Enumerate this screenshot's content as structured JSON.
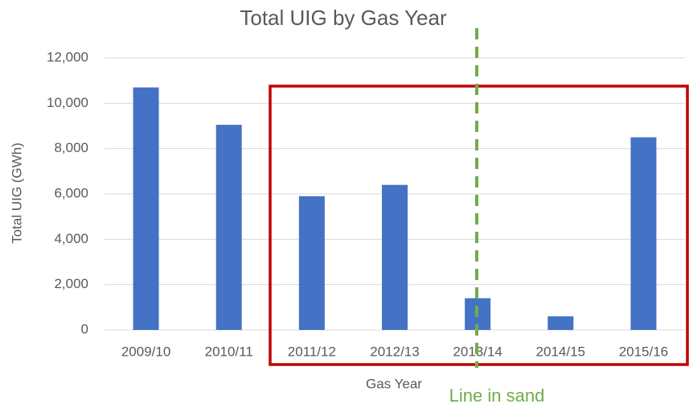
{
  "chart_data": {
    "type": "bar",
    "title": "Total UIG by Gas Year",
    "x_label": "Gas Year",
    "y_label": "Total UIG (GWh)",
    "annotation": "Line in sand",
    "categories": [
      "2009/10",
      "2010/11",
      "2011/12",
      "2012/13",
      "2013/14",
      "2014/15",
      "2015/16"
    ],
    "values": [
      10700,
      9050,
      5900,
      6400,
      1400,
      600,
      8500
    ],
    "color": "#4472c4",
    "ylim": [
      0,
      12000
    ],
    "yticks": [
      0,
      {
        "value": 2000,
        "label": "2,000"
      },
      {
        "value": 4000,
        "label": "4,000"
      },
      {
        "value": 6000,
        "label": "6,000"
      },
      {
        "value": 8000,
        "label": "8,000"
      },
      {
        "value": 10000,
        "label": "10,000"
      },
      {
        "value": 12000,
        "label": "12,000"
      }
    ],
    "grid": true
  }
}
